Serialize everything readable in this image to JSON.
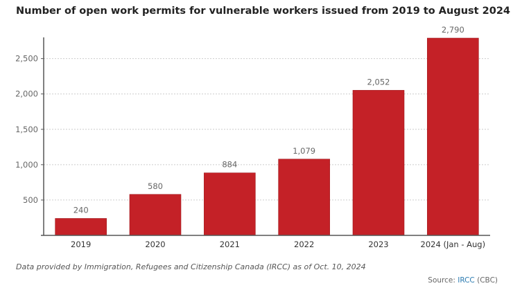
{
  "chart_data": {
    "type": "bar",
    "title": "Number of open work permits for vulnerable workers issued from 2019 to August 2024",
    "categories": [
      "2019",
      "2020",
      "2021",
      "2022",
      "2023",
      "2024 (Jan - Aug)"
    ],
    "values": [
      240,
      580,
      884,
      1079,
      2052,
      2790
    ],
    "value_labels": [
      "240",
      "580",
      "884",
      "1,079",
      "2,052",
      "2,790"
    ],
    "yticks": [
      500,
      1000,
      1500,
      2000,
      2500
    ],
    "ytick_labels": [
      "500",
      "1,000",
      "1,500",
      "2,000",
      "2,500"
    ],
    "ylim": [
      0,
      2800
    ],
    "grid": "horizontal dashed",
    "bar_color": "#c42127",
    "xlabel": "",
    "ylabel": ""
  },
  "footer": {
    "note": "Data provided by Immigration, Refugees and Citizenship Canada (IRCC) as of Oct. 10, 2024",
    "source_prefix": "Source: ",
    "source_link": "IRCC",
    "source_suffix": " (CBC)"
  }
}
